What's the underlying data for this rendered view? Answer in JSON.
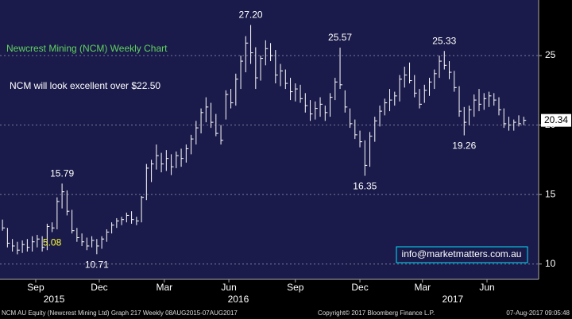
{
  "chart_data": {
    "type": "ohlc",
    "title": "Newcrest Mining (NCM) Weekly Chart",
    "subtitle": "NCM will look excellent over $22.50",
    "watermark": "info@marketmatters.com.au",
    "footer_left": "NCM AU Equity (Newcrest Mining Ltd) Graph 217  Weekly 08AUG2015-07AUG2017",
    "footer_center": "Copyright© 2017 Bloomberg Finance L.P.",
    "footer_right": "07-Aug-2017 09:05:48",
    "color": "#ffffff",
    "title_color": "#5fd35f",
    "background": "#1b1b4b",
    "grid": true,
    "last_price": 20.34,
    "ylim": [
      8.9,
      29
    ],
    "yticks": [
      10,
      15,
      20,
      25
    ],
    "xlim": [
      -0.5,
      108
    ],
    "xticks": [
      {
        "value": 6.7,
        "label": "Sep"
      },
      {
        "value": 19.5,
        "label": "Dec"
      },
      {
        "value": 32.6,
        "label": "Mar"
      },
      {
        "value": 45.6,
        "label": "Jun"
      },
      {
        "value": 59,
        "label": "Sep"
      },
      {
        "value": 72,
        "label": "Dec"
      },
      {
        "value": 84.6,
        "label": "Mar"
      },
      {
        "value": 97.6,
        "label": "Jun"
      }
    ],
    "year_labels": [
      {
        "value": 10.4,
        "label": "2015"
      },
      {
        "value": 47.5,
        "label": "2016"
      },
      {
        "value": 90.7,
        "label": "2017"
      }
    ],
    "annotations": [
      {
        "label": "15.79",
        "index": 12,
        "position": "above",
        "color": "#ffffff"
      },
      {
        "label": "5.08",
        "index": 10,
        "position": "below",
        "color": "#ffff33"
      },
      {
        "label": "10.71",
        "index": 19,
        "position": "below",
        "color": "#ffffff"
      },
      {
        "label": "27.20",
        "index": 50,
        "position": "above",
        "color": "#ffffff"
      },
      {
        "label": "25.57",
        "index": 68,
        "position": "above",
        "color": "#ffffff"
      },
      {
        "label": "16.35",
        "index": 73,
        "position": "below",
        "color": "#ffffff"
      },
      {
        "label": "25.33",
        "index": 89,
        "position": "above",
        "color": "#ffffff"
      },
      {
        "label": "19.26",
        "index": 93,
        "position": "below",
        "color": "#ffffff"
      }
    ],
    "low": [
      12.4,
      11.2,
      10.9,
      10.7,
      10.8,
      10.9,
      10.9,
      11.2,
      10.9,
      11.0,
      12.3,
      12.5,
      14.0,
      13.5,
      12.2,
      11.6,
      11.3,
      11.0,
      11.2,
      10.71,
      11.1,
      11.6,
      12.2,
      12.6,
      12.8,
      13.0,
      12.9,
      12.8,
      13.0,
      14.6,
      15.9,
      16.8,
      16.6,
      16.7,
      16.4,
      16.9,
      17.0,
      17.3,
      17.9,
      18.6,
      19.4,
      20.2,
      19.8,
      19.2,
      18.6,
      20.4,
      21.2,
      21.4,
      22.6,
      23.8,
      24.4,
      22.6,
      23.2,
      24.3,
      24.6,
      23.0,
      22.8,
      22.6,
      21.8,
      21.7,
      21.6,
      20.9,
      20.3,
      20.4,
      20.6,
      20.3,
      20.6,
      21.8,
      22.6,
      20.9,
      19.8,
      19.0,
      18.4,
      16.35,
      17.0,
      18.8,
      19.9,
      20.7,
      21.0,
      21.4,
      21.7,
      22.7,
      23.0,
      22.0,
      21.2,
      21.6,
      22.1,
      22.6,
      23.4,
      24.0,
      23.3,
      22.4,
      20.6,
      19.26,
      20.0,
      20.6,
      21.0,
      21.1,
      21.3,
      21.4,
      20.7,
      19.8,
      19.6,
      19.6,
      19.9,
      20.0
    ],
    "high": [
      13.2,
      12.6,
      11.8,
      11.6,
      11.7,
      11.8,
      12.0,
      12.1,
      12.0,
      12.9,
      13.0,
      14.8,
      15.79,
      15.3,
      13.9,
      12.6,
      12.2,
      11.9,
      12.0,
      11.8,
      12.0,
      12.5,
      13.0,
      13.3,
      13.4,
      13.7,
      13.8,
      13.4,
      14.9,
      17.2,
      17.5,
      18.6,
      18.0,
      18.2,
      17.9,
      18.1,
      18.3,
      18.6,
      19.3,
      20.3,
      21.2,
      22.0,
      21.6,
      20.8,
      20.0,
      22.5,
      22.6,
      23.7,
      25.0,
      26.4,
      27.2,
      25.6,
      25.0,
      26.1,
      25.9,
      25.4,
      24.4,
      24.0,
      23.4,
      23.0,
      22.9,
      22.3,
      21.8,
      21.7,
      22.0,
      21.4,
      22.3,
      23.4,
      25.57,
      22.5,
      21.2,
      20.4,
      19.6,
      18.9,
      19.5,
      20.6,
      21.4,
      21.9,
      22.6,
      22.4,
      23.6,
      24.2,
      24.5,
      23.6,
      22.6,
      22.9,
      23.4,
      24.0,
      25.0,
      25.33,
      24.6,
      23.9,
      22.8,
      21.3,
      21.4,
      22.2,
      22.6,
      22.3,
      22.4,
      22.3,
      22.0,
      21.2,
      20.6,
      20.4,
      20.7,
      20.6
    ],
    "close": [
      12.6,
      11.5,
      11.3,
      11.0,
      11.4,
      11.2,
      11.6,
      11.8,
      11.2,
      12.7,
      12.6,
      14.5,
      15.2,
      13.8,
      12.4,
      11.9,
      11.6,
      11.3,
      11.7,
      11.3,
      11.8,
      12.3,
      12.8,
      13.1,
      13.2,
      13.5,
      13.2,
      13.1,
      14.8,
      16.9,
      17.2,
      17.8,
      17.2,
      17.6,
      17.0,
      17.8,
      17.6,
      18.3,
      19.0,
      19.8,
      20.9,
      21.3,
      20.2,
      19.4,
      18.9,
      22.2,
      21.6,
      23.3,
      24.6,
      25.9,
      25.2,
      23.4,
      24.8,
      25.5,
      25.0,
      23.6,
      23.9,
      23.0,
      22.4,
      22.6,
      21.9,
      21.4,
      20.8,
      21.2,
      21.5,
      20.9,
      22.0,
      23.1,
      22.9,
      21.3,
      20.1,
      19.3,
      18.8,
      17.1,
      19.2,
      20.3,
      21.0,
      21.6,
      21.8,
      22.1,
      23.3,
      23.6,
      23.2,
      22.3,
      21.5,
      22.5,
      23.1,
      23.7,
      24.6,
      24.3,
      23.8,
      22.7,
      21.0,
      20.2,
      21.1,
      21.8,
      21.5,
      21.9,
      22.1,
      21.8,
      21.1,
      20.1,
      20.0,
      20.2,
      20.1,
      20.34
    ]
  }
}
